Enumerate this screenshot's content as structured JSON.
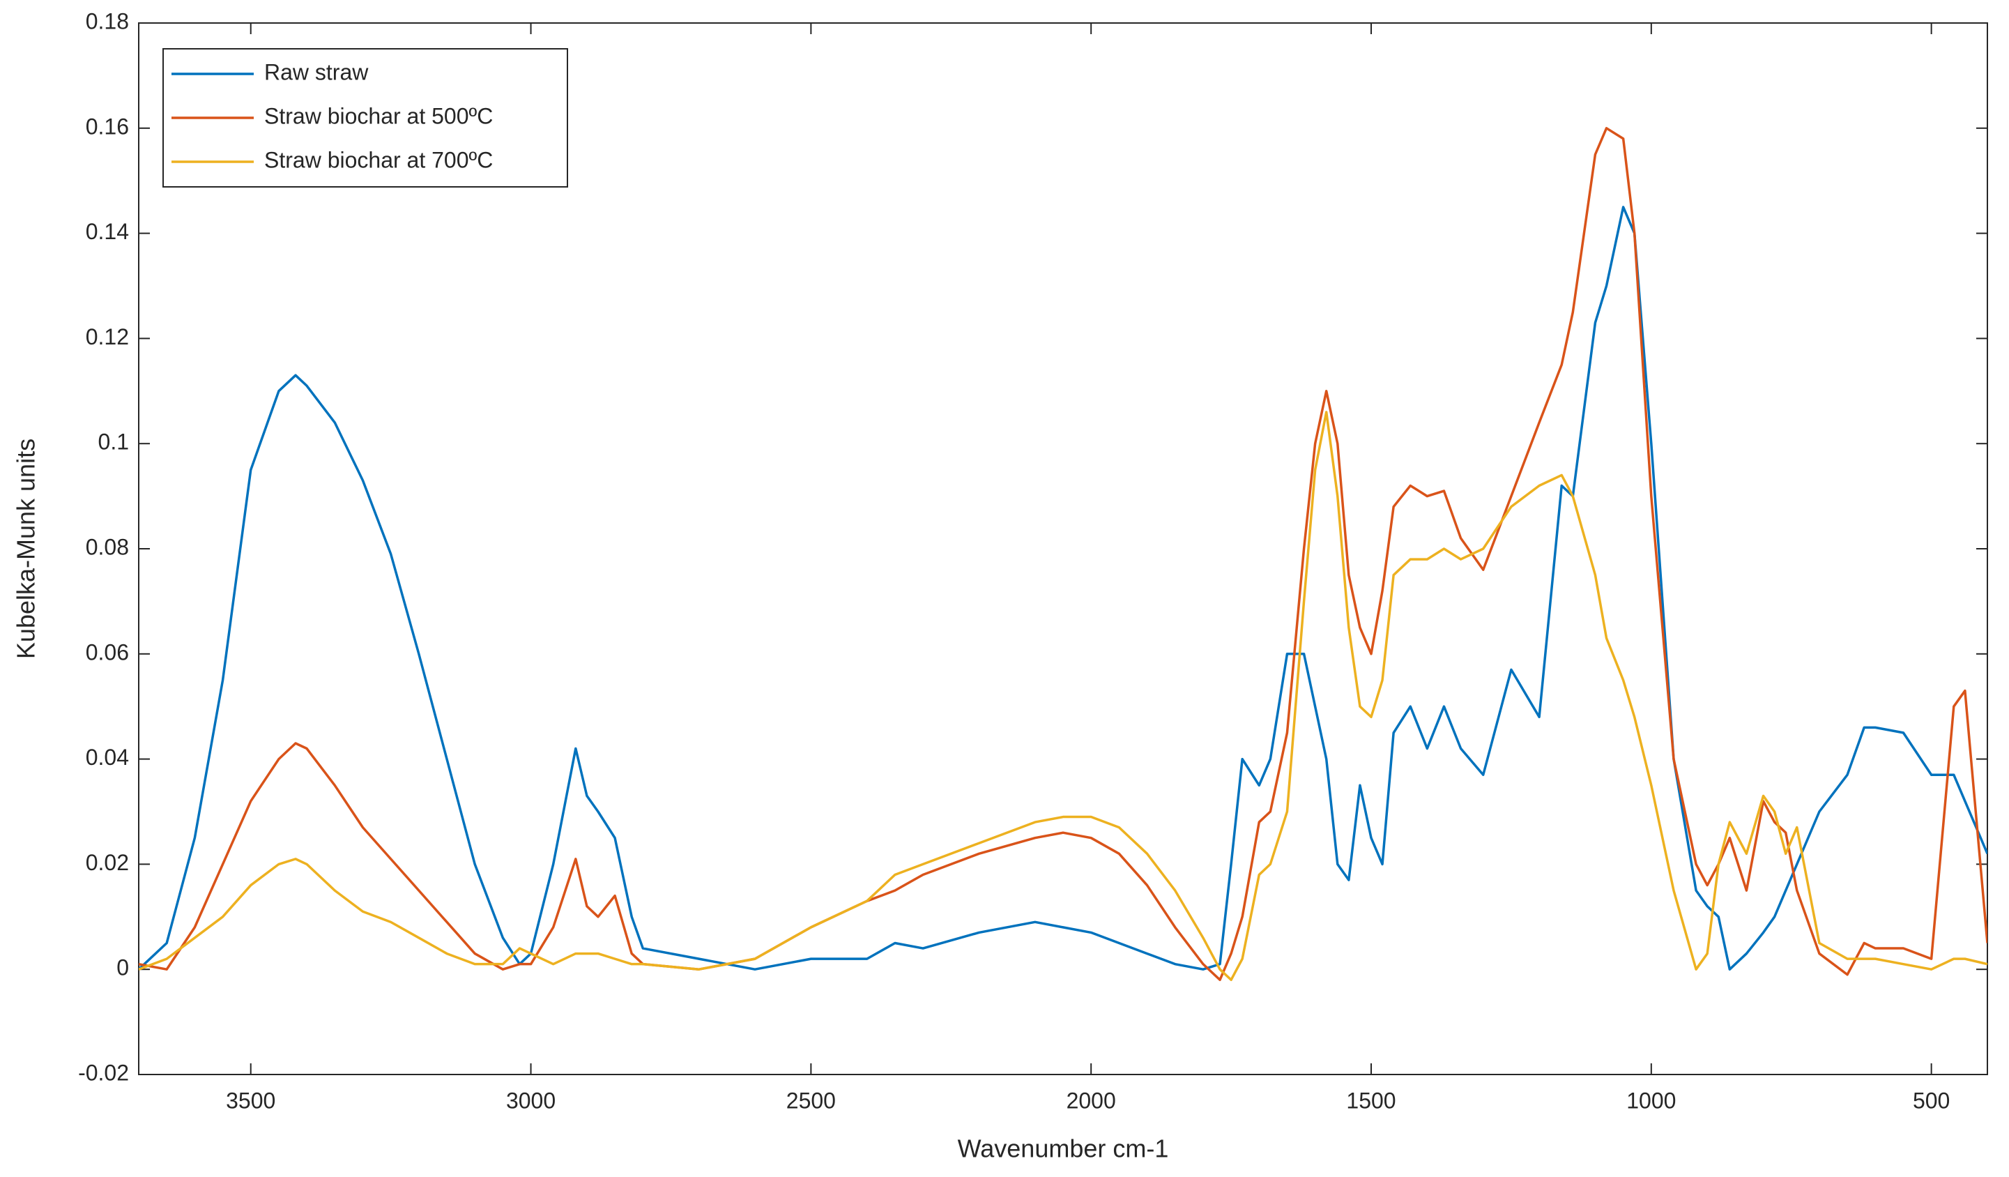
{
  "chart_data": {
    "type": "line",
    "x_label": "Wavenumber cm-1",
    "y_label": "Kubelka-Munk units",
    "xlim": [
      3700,
      400
    ],
    "ylim": [
      -0.02,
      0.18
    ],
    "xticks": [
      3500,
      3000,
      2500,
      2000,
      1500,
      1000,
      500
    ],
    "yticks": [
      -0.02,
      0,
      0.02,
      0.04,
      0.06,
      0.08,
      0.1,
      0.12,
      0.14,
      0.16,
      0.18
    ],
    "legend": "upper left",
    "x": [
      3700,
      3650,
      3600,
      3550,
      3500,
      3450,
      3420,
      3400,
      3350,
      3300,
      3250,
      3200,
      3150,
      3100,
      3050,
      3020,
      3000,
      2960,
      2920,
      2900,
      2880,
      2850,
      2820,
      2800,
      2700,
      2600,
      2500,
      2400,
      2350,
      2300,
      2200,
      2100,
      2050,
      2000,
      1950,
      1900,
      1850,
      1800,
      1770,
      1750,
      1730,
      1700,
      1680,
      1650,
      1620,
      1600,
      1580,
      1560,
      1540,
      1520,
      1500,
      1480,
      1460,
      1430,
      1400,
      1370,
      1340,
      1300,
      1250,
      1200,
      1160,
      1140,
      1100,
      1080,
      1050,
      1030,
      1000,
      960,
      920,
      900,
      880,
      860,
      830,
      800,
      780,
      760,
      740,
      700,
      650,
      620,
      600,
      550,
      500,
      460,
      440,
      400
    ],
    "series": [
      {
        "name": "Raw straw",
        "color": "#0072BD",
        "values": [
          0.0,
          0.005,
          0.025,
          0.055,
          0.095,
          0.11,
          0.113,
          0.111,
          0.104,
          0.093,
          0.079,
          0.06,
          0.04,
          0.02,
          0.006,
          0.001,
          0.003,
          0.02,
          0.042,
          0.033,
          0.03,
          0.025,
          0.01,
          0.004,
          0.002,
          0.0,
          0.002,
          0.002,
          0.005,
          0.004,
          0.007,
          0.009,
          0.008,
          0.007,
          0.005,
          0.003,
          0.001,
          0.0,
          0.001,
          0.02,
          0.04,
          0.035,
          0.04,
          0.06,
          0.06,
          0.05,
          0.04,
          0.02,
          0.017,
          0.035,
          0.025,
          0.02,
          0.045,
          0.05,
          0.042,
          0.05,
          0.042,
          0.037,
          0.057,
          0.048,
          0.092,
          0.09,
          0.123,
          0.13,
          0.145,
          0.14,
          0.1,
          0.04,
          0.015,
          0.012,
          0.01,
          0.0,
          0.003,
          0.007,
          0.01,
          0.015,
          0.02,
          0.03,
          0.037,
          0.046,
          0.046,
          0.045,
          0.037,
          0.037,
          0.032,
          0.022
        ]
      },
      {
        "name": "Straw biochar at 500ºC",
        "color": "#D95319",
        "values": [
          0.001,
          0.0,
          0.008,
          0.02,
          0.032,
          0.04,
          0.043,
          0.042,
          0.035,
          0.027,
          0.021,
          0.015,
          0.009,
          0.003,
          0.0,
          0.001,
          0.001,
          0.008,
          0.021,
          0.012,
          0.01,
          0.014,
          0.003,
          0.001,
          0.0,
          0.002,
          0.008,
          0.013,
          0.015,
          0.018,
          0.022,
          0.025,
          0.026,
          0.025,
          0.022,
          0.016,
          0.008,
          0.001,
          -0.002,
          0.003,
          0.01,
          0.028,
          0.03,
          0.045,
          0.08,
          0.1,
          0.11,
          0.1,
          0.075,
          0.065,
          0.06,
          0.072,
          0.088,
          0.092,
          0.09,
          0.091,
          0.082,
          0.076,
          0.09,
          0.104,
          0.115,
          0.125,
          0.155,
          0.16,
          0.158,
          0.14,
          0.09,
          0.04,
          0.02,
          0.016,
          0.02,
          0.025,
          0.015,
          0.032,
          0.028,
          0.026,
          0.015,
          0.003,
          -0.001,
          0.005,
          0.004,
          0.004,
          0.002,
          0.05,
          0.053,
          0.005
        ]
      },
      {
        "name": "Straw biochar at 700ºC",
        "color": "#EDB120",
        "values": [
          0.0,
          0.002,
          0.006,
          0.01,
          0.016,
          0.02,
          0.021,
          0.02,
          0.015,
          0.011,
          0.009,
          0.006,
          0.003,
          0.001,
          0.001,
          0.004,
          0.003,
          0.001,
          0.003,
          0.003,
          0.003,
          0.002,
          0.001,
          0.001,
          0.0,
          0.002,
          0.008,
          0.013,
          0.018,
          0.02,
          0.024,
          0.028,
          0.029,
          0.029,
          0.027,
          0.022,
          0.015,
          0.006,
          0.0,
          -0.002,
          0.002,
          0.018,
          0.02,
          0.03,
          0.07,
          0.095,
          0.106,
          0.09,
          0.065,
          0.05,
          0.048,
          0.055,
          0.075,
          0.078,
          0.078,
          0.08,
          0.078,
          0.08,
          0.088,
          0.092,
          0.094,
          0.09,
          0.075,
          0.063,
          0.055,
          0.048,
          0.035,
          0.015,
          0.0,
          0.003,
          0.02,
          0.028,
          0.022,
          0.033,
          0.03,
          0.022,
          0.027,
          0.005,
          0.002,
          0.002,
          0.002,
          0.001,
          0.0,
          0.002,
          0.002,
          0.001
        ]
      }
    ]
  }
}
